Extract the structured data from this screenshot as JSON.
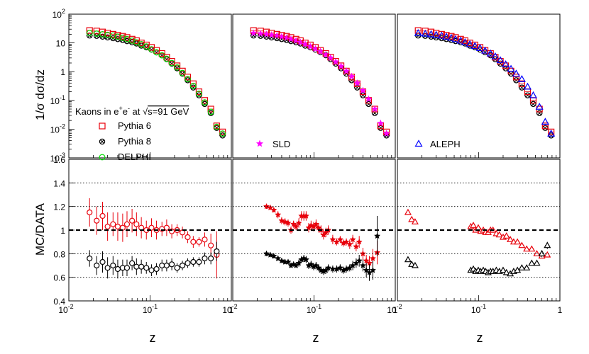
{
  "chart_data": {
    "type": "scatter",
    "note_scale": "log-x",
    "ylabel_top": "1/σ dσ/dz",
    "ylabel_bottom": "MC/DATA",
    "xlabel": "z",
    "x_ticks": [
      "10",
      "-2",
      "10",
      "-1",
      "1"
    ],
    "top_y_ticks": [
      {
        "base": "10",
        "exp": "-3"
      },
      {
        "base": "10",
        "exp": "-2"
      },
      {
        "base": "10",
        "exp": "-1"
      },
      {
        "base": "1",
        "exp": ""
      },
      {
        "base": "10",
        "exp": ""
      },
      {
        "base": "10",
        "exp": "2"
      }
    ],
    "bottom_y_ticks": [
      "0.4",
      "0.6",
      "0.8",
      "1",
      "1.2",
      "1.4",
      "1.6"
    ],
    "legend": {
      "title_parts": [
        "Kaons in e",
        "+",
        "e",
        "-",
        " at ",
        "s=91 GeV"
      ],
      "items": [
        {
          "label": "Pythia 6",
          "marker": "open-square",
          "color": "#e8000b"
        },
        {
          "label": "Pythia 8",
          "marker": "hatched-circle",
          "color": "#000000"
        },
        {
          "label": "DELPHI",
          "marker": "open-circle",
          "color": "#00dd00"
        }
      ],
      "sld": {
        "label": "SLD",
        "marker": "star",
        "color": "#ff00ff"
      },
      "aleph": {
        "label": "ALEPH",
        "marker": "open-triangle",
        "color": "#0000ff"
      }
    },
    "panels": [
      {
        "name": "DELPHI",
        "top_x": [
          0.018,
          0.022,
          0.026,
          0.03,
          0.035,
          0.04,
          0.046,
          0.052,
          0.06,
          0.068,
          0.078,
          0.09,
          0.104,
          0.12,
          0.14,
          0.16,
          0.185,
          0.215,
          0.25,
          0.29,
          0.34,
          0.4,
          0.47,
          0.56,
          0.66,
          0.78
        ],
        "top_data": [
          22,
          21,
          20,
          19,
          18,
          16.5,
          15,
          13.5,
          12,
          10.5,
          9,
          7.5,
          6,
          4.7,
          3.7,
          2.8,
          2.0,
          1.4,
          0.9,
          0.55,
          0.32,
          0.17,
          0.085,
          0.04,
          0.012,
          0.007
        ],
        "top_p6": [
          27,
          26,
          24,
          22,
          20,
          18.5,
          17,
          15.5,
          13.5,
          12,
          10,
          8.5,
          7,
          5.5,
          4.3,
          3.2,
          2.3,
          1.6,
          1.05,
          0.65,
          0.38,
          0.2,
          0.1,
          0.05,
          0.013,
          0.008
        ],
        "top_p8": [
          18,
          17.5,
          16.5,
          15.5,
          14.5,
          13.5,
          12.5,
          11.5,
          10.5,
          9.5,
          8,
          7,
          5.8,
          4.7,
          3.7,
          2.7,
          1.9,
          1.3,
          0.85,
          0.5,
          0.28,
          0.15,
          0.075,
          0.036,
          0.011,
          0.006
        ],
        "ratio_x": [
          0.018,
          0.022,
          0.026,
          0.03,
          0.035,
          0.04,
          0.046,
          0.052,
          0.06,
          0.068,
          0.078,
          0.09,
          0.104,
          0.12,
          0.14,
          0.16,
          0.185,
          0.215,
          0.25,
          0.29,
          0.34,
          0.4,
          0.47,
          0.56,
          0.66
        ],
        "ratio_p6": [
          1.15,
          1.08,
          1.12,
          1.03,
          1.05,
          1.03,
          1.02,
          1.05,
          1.08,
          1.05,
          1.02,
          1.0,
          1.02,
          1.0,
          1.01,
          1.02,
          0.99,
          1.0,
          0.98,
          0.94,
          0.9,
          0.9,
          0.92,
          0.87,
          0.79
        ],
        "ratio_p6_err": [
          0.12,
          0.12,
          0.12,
          0.12,
          0.1,
          0.12,
          0.12,
          0.11,
          0.1,
          0.1,
          0.09,
          0.08,
          0.08,
          0.08,
          0.06,
          0.07,
          0.06,
          0.05,
          0.05,
          0.05,
          0.05,
          0.04,
          0.06,
          0.1,
          0.2
        ],
        "ratio_p8": [
          0.76,
          0.7,
          0.73,
          0.68,
          0.7,
          0.67,
          0.68,
          0.68,
          0.72,
          0.69,
          0.69,
          0.68,
          0.66,
          0.67,
          0.7,
          0.7,
          0.71,
          0.68,
          0.7,
          0.72,
          0.73,
          0.73,
          0.76,
          0.76,
          0.82
        ],
        "ratio_p8_err": [
          0.07,
          0.08,
          0.09,
          0.09,
          0.08,
          0.08,
          0.07,
          0.07,
          0.06,
          0.07,
          0.06,
          0.05,
          0.05,
          0.05,
          0.05,
          0.05,
          0.05,
          0.04,
          0.04,
          0.04,
          0.04,
          0.04,
          0.05,
          0.05,
          0.08
        ]
      },
      {
        "name": "SLD",
        "top_x": [
          0.018,
          0.022,
          0.026,
          0.03,
          0.035,
          0.04,
          0.046,
          0.052,
          0.06,
          0.068,
          0.078,
          0.09,
          0.104,
          0.12,
          0.14,
          0.16,
          0.185,
          0.215,
          0.25,
          0.29,
          0.34,
          0.4,
          0.47,
          0.56,
          0.66,
          0.78
        ],
        "top_data": [
          22,
          21,
          20,
          19,
          18,
          16.5,
          15,
          13.5,
          12,
          10.5,
          9,
          7.5,
          6.2,
          5,
          3.9,
          3,
          2.2,
          1.55,
          1.05,
          0.68,
          0.4,
          0.22,
          0.11,
          0.05,
          0.016,
          0.007
        ],
        "top_p6": [
          27,
          26,
          24,
          22,
          20,
          18.5,
          17,
          15.5,
          13.5,
          12,
          10,
          8.5,
          7,
          5.5,
          4.3,
          3.2,
          2.3,
          1.6,
          1.05,
          0.65,
          0.38,
          0.2,
          0.1,
          0.05,
          0.013,
          0.008
        ],
        "top_p8": [
          18,
          17.5,
          16.5,
          15.5,
          14.5,
          13.5,
          12.5,
          11.5,
          10.5,
          9.5,
          8,
          7,
          5.8,
          4.7,
          3.7,
          2.7,
          1.9,
          1.3,
          0.85,
          0.5,
          0.28,
          0.15,
          0.075,
          0.036,
          0.011,
          0.006
        ],
        "ratio_x": [
          0.026,
          0.029,
          0.032,
          0.036,
          0.04,
          0.044,
          0.048,
          0.052,
          0.056,
          0.06,
          0.065,
          0.07,
          0.075,
          0.08,
          0.086,
          0.092,
          0.099,
          0.106,
          0.114,
          0.122,
          0.131,
          0.14,
          0.15,
          0.17,
          0.19,
          0.21,
          0.23,
          0.25,
          0.275,
          0.3,
          0.33,
          0.36,
          0.4,
          0.44,
          0.48,
          0.53,
          0.6
        ],
        "ratio_p6": [
          1.2,
          1.19,
          1.17,
          1.13,
          1.08,
          1.07,
          1.06,
          1.0,
          1.05,
          1.03,
          1.06,
          1.12,
          1.12,
          1.12,
          1.02,
          1.04,
          1.03,
          1.05,
          1.02,
          1.0,
          0.96,
          0.98,
          1.0,
          0.92,
          0.9,
          0.92,
          0.89,
          0.9,
          0.88,
          0.92,
          0.86,
          0.9,
          0.8,
          0.74,
          0.72,
          0.76,
          0.81
        ],
        "ratio_p6_err": [
          0.02,
          0.02,
          0.02,
          0.03,
          0.03,
          0.03,
          0.03,
          0.03,
          0.03,
          0.03,
          0.04,
          0.04,
          0.04,
          0.04,
          0.04,
          0.04,
          0.04,
          0.04,
          0.04,
          0.04,
          0.04,
          0.04,
          0.04,
          0.04,
          0.03,
          0.03,
          0.03,
          0.03,
          0.04,
          0.04,
          0.04,
          0.05,
          0.05,
          0.05,
          0.06,
          0.08,
          0.1
        ],
        "ratio_p8": [
          0.8,
          0.79,
          0.78,
          0.76,
          0.74,
          0.73,
          0.73,
          0.7,
          0.71,
          0.7,
          0.72,
          0.75,
          0.76,
          0.75,
          0.7,
          0.71,
          0.69,
          0.7,
          0.68,
          0.66,
          0.65,
          0.66,
          0.68,
          0.67,
          0.67,
          0.68,
          0.66,
          0.67,
          0.68,
          0.7,
          0.72,
          0.74,
          0.7,
          0.66,
          0.64,
          0.66,
          0.95
        ],
        "ratio_p8_err": [
          0.02,
          0.02,
          0.02,
          0.02,
          0.02,
          0.02,
          0.02,
          0.02,
          0.02,
          0.02,
          0.03,
          0.03,
          0.03,
          0.03,
          0.03,
          0.03,
          0.03,
          0.03,
          0.03,
          0.03,
          0.03,
          0.03,
          0.03,
          0.03,
          0.03,
          0.03,
          0.03,
          0.03,
          0.03,
          0.04,
          0.04,
          0.05,
          0.05,
          0.06,
          0.07,
          0.08,
          0.17
        ]
      },
      {
        "name": "ALEPH",
        "top_x": [
          0.018,
          0.022,
          0.026,
          0.03,
          0.035,
          0.04,
          0.046,
          0.052,
          0.06,
          0.068,
          0.078,
          0.09,
          0.104,
          0.12,
          0.14,
          0.16,
          0.185,
          0.215,
          0.25,
          0.29,
          0.34,
          0.4,
          0.47,
          0.56,
          0.66,
          0.78
        ],
        "top_data": [
          22,
          21,
          20,
          19,
          18,
          16.5,
          15,
          13.5,
          12,
          10.5,
          9,
          7.8,
          6.6,
          5.4,
          4.3,
          3.4,
          2.5,
          1.8,
          1.25,
          0.85,
          0.55,
          0.3,
          0.15,
          0.06,
          0.018,
          0.007
        ],
        "top_p6": [
          27,
          26,
          24,
          22,
          20,
          18.5,
          17,
          15.5,
          13.5,
          12,
          10,
          8.5,
          7,
          5.5,
          4.3,
          3.2,
          2.3,
          1.6,
          1.05,
          0.65,
          0.38,
          0.2,
          0.1,
          0.05,
          0.013,
          0.008
        ],
        "top_p8": [
          18,
          17.5,
          16.5,
          15.5,
          14.5,
          13.5,
          12.5,
          11.5,
          10.5,
          9.5,
          8,
          7,
          5.8,
          4.7,
          3.7,
          2.7,
          1.9,
          1.3,
          0.85,
          0.5,
          0.28,
          0.15,
          0.075,
          0.036,
          0.011,
          0.006
        ],
        "ratio_x": [
          0.0135,
          0.015,
          0.0165,
          0.08,
          0.086,
          0.092,
          0.099,
          0.106,
          0.114,
          0.122,
          0.131,
          0.14,
          0.15,
          0.165,
          0.18,
          0.2,
          0.22,
          0.245,
          0.27,
          0.3,
          0.34,
          0.39,
          0.45,
          0.52,
          0.6,
          0.7
        ],
        "ratio_p6": [
          1.15,
          1.09,
          1.07,
          1.03,
          1.04,
          1.0,
          1.02,
          0.99,
          1.0,
          0.98,
          0.98,
          1.0,
          1.0,
          0.97,
          0.96,
          0.94,
          0.95,
          0.92,
          0.9,
          0.9,
          0.87,
          0.84,
          0.84,
          0.8,
          0.78,
          0.79
        ],
        "ratio_p6_err": [
          0.02,
          0.02,
          0.02,
          0.02,
          0.02,
          0.02,
          0.02,
          0.02,
          0.02,
          0.02,
          0.02,
          0.02,
          0.02,
          0.02,
          0.02,
          0.02,
          0.02,
          0.02,
          0.02,
          0.02,
          0.02,
          0.02,
          0.02,
          0.02,
          0.02,
          0.02
        ],
        "ratio_p8": [
          0.75,
          0.71,
          0.7,
          0.66,
          0.67,
          0.65,
          0.66,
          0.65,
          0.66,
          0.65,
          0.64,
          0.65,
          0.65,
          0.66,
          0.65,
          0.66,
          0.64,
          0.63,
          0.65,
          0.66,
          0.68,
          0.68,
          0.72,
          0.72,
          0.8,
          0.87
        ],
        "ratio_p8_err": [
          0.02,
          0.02,
          0.02,
          0.02,
          0.02,
          0.02,
          0.02,
          0.02,
          0.02,
          0.02,
          0.02,
          0.02,
          0.02,
          0.02,
          0.02,
          0.02,
          0.02,
          0.02,
          0.02,
          0.02,
          0.02,
          0.02,
          0.02,
          0.02,
          0.03,
          0.03
        ]
      }
    ],
    "colors": {
      "p6": "#e8000b",
      "p8": "#000000",
      "delphi": "#00dd00",
      "sld": "#ff00ff",
      "aleph": "#0000ff"
    }
  }
}
